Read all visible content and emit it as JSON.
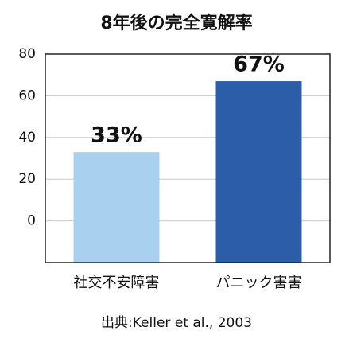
{
  "chart_data": {
    "type": "bar",
    "title": "8年後の完全寛解率",
    "categories": [
      "社交不安障害",
      "パニック害害"
    ],
    "values": [
      33,
      67
    ],
    "value_labels": [
      "33%",
      "67%"
    ],
    "colors": [
      "#a9d0ee",
      "#2c5da8"
    ],
    "ylim": [
      -20,
      80
    ],
    "yticks": [
      0,
      20,
      40,
      60,
      80
    ],
    "grid": true,
    "source": "出典:Keller et al., 2003"
  }
}
